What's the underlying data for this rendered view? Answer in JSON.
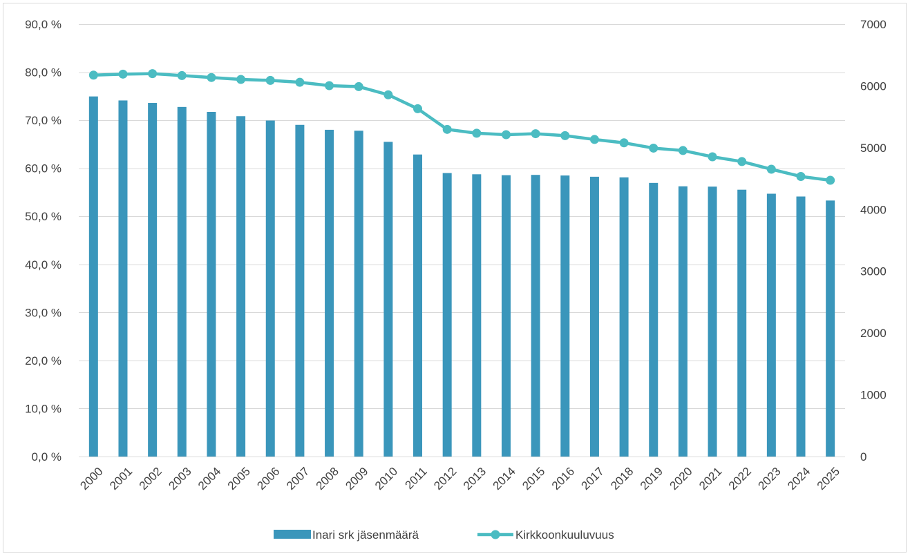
{
  "chart_data": {
    "type": "bar",
    "categories": [
      "2000",
      "2001",
      "2002",
      "2003",
      "2004",
      "2005",
      "2006",
      "2007",
      "2008",
      "2009",
      "2010",
      "2011",
      "2012",
      "2013",
      "2014",
      "2015",
      "2016",
      "2017",
      "2018",
      "2019",
      "2020",
      "2021",
      "2022",
      "2023",
      "2024",
      "2025"
    ],
    "series": [
      {
        "name": "Inari srk jäsenmäärä",
        "type": "bar",
        "axis": "right",
        "color": "#3a96bb",
        "values": [
          5830,
          5765,
          5725,
          5660,
          5580,
          5510,
          5440,
          5370,
          5290,
          5275,
          5095,
          4890,
          4590,
          4570,
          4555,
          4560,
          4550,
          4530,
          4520,
          4430,
          4375,
          4370,
          4320,
          4255,
          4210,
          4145
        ]
      },
      {
        "name": "Kirkkoonkuuluvuus",
        "type": "line",
        "axis": "left",
        "color": "#4bbcc2",
        "values": [
          79.4,
          79.6,
          79.7,
          79.3,
          78.9,
          78.5,
          78.3,
          77.9,
          77.2,
          77.0,
          75.3,
          72.4,
          68.1,
          67.3,
          67.0,
          67.2,
          66.8,
          66.0,
          65.3,
          64.2,
          63.7,
          62.4,
          61.4,
          59.8,
          58.3,
          57.5
        ]
      }
    ],
    "y_left": {
      "ticks": [
        "0,0 %",
        "10,0 %",
        "20,0 %",
        "30,0 %",
        "40,0 %",
        "50,0 %",
        "60,0 %",
        "70,0 %",
        "80,0 %",
        "90,0 %"
      ],
      "ylim": [
        0,
        90
      ]
    },
    "y_right": {
      "ticks": [
        "0",
        "1000",
        "2000",
        "3000",
        "4000",
        "5000",
        "6000",
        "7000"
      ],
      "ylim": [
        0,
        7000
      ]
    },
    "grid": true,
    "legend": "bottom"
  }
}
